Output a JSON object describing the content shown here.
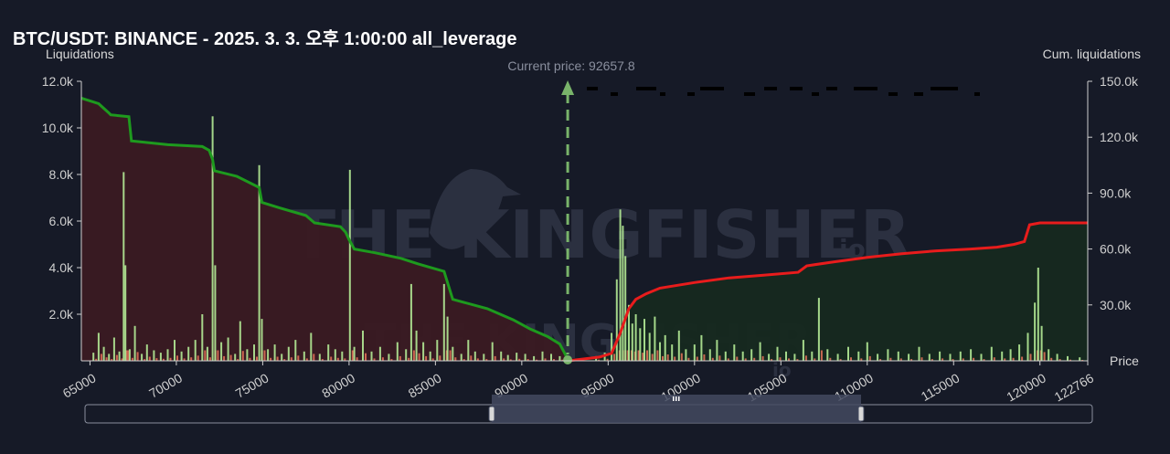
{
  "title": "BTC/USDT: BINANCE - 2025. 3. 3. 오후 1:00:00 all_leverage",
  "watermark": {
    "brand": "THE KINGFISHER",
    "suffix": "io"
  },
  "colors": {
    "background": "#161a27",
    "long_cum_line": "#1e9a1e",
    "short_cum_line": "#e81c1c",
    "long_area": "#3a1a22",
    "short_area": "#16291f",
    "bar_green": "#b4eb96",
    "bar_red": "#e8735a",
    "current_price_marker": "#79b46a"
  },
  "chart_data": {
    "type": "bar",
    "title": "BTC/USDT: BINANCE - 2025. 3. 3. 오후 1:00:00 all_leverage",
    "xlabel": "Price",
    "ylabel": "Liquidations",
    "y2label": "Cum. liquidations",
    "xlim": [
      64500,
      122766
    ],
    "ylim": [
      0,
      12000
    ],
    "y2lim": [
      0,
      150000
    ],
    "x_ticks": [
      65000,
      70000,
      75000,
      80000,
      85000,
      90000,
      95000,
      100000,
      105000,
      110000,
      115000,
      120000,
      122766
    ],
    "y_ticks": [
      2000,
      4000,
      6000,
      8000,
      10000,
      12000
    ],
    "y_tick_labels": [
      "2.0k",
      "4.0k",
      "6.0k",
      "8.0k",
      "10.0k",
      "12.0k"
    ],
    "y2_ticks": [
      30000,
      60000,
      90000,
      120000,
      150000
    ],
    "y2_tick_labels": [
      "30.0k",
      "60.0k",
      "90.0k",
      "120.0k",
      "150.0k"
    ],
    "current_price": 92657.8,
    "current_price_label": "Current price: 92657.8",
    "grid": false,
    "legend": "none",
    "liquidation_bars": [
      {
        "x": 65200,
        "v": 350,
        "side": "long"
      },
      {
        "x": 65500,
        "v": 1200,
        "side": "long"
      },
      {
        "x": 65800,
        "v": 600,
        "side": "long"
      },
      {
        "x": 66100,
        "v": 300,
        "side": "long"
      },
      {
        "x": 66400,
        "v": 1000,
        "side": "long"
      },
      {
        "x": 66700,
        "v": 400,
        "side": "long"
      },
      {
        "x": 66950,
        "v": 8100,
        "side": "long"
      },
      {
        "x": 67050,
        "v": 4100,
        "side": "long"
      },
      {
        "x": 67300,
        "v": 500,
        "side": "long"
      },
      {
        "x": 67600,
        "v": 1500,
        "side": "long"
      },
      {
        "x": 68000,
        "v": 300,
        "side": "long"
      },
      {
        "x": 68300,
        "v": 700,
        "side": "long"
      },
      {
        "x": 68700,
        "v": 450,
        "side": "long"
      },
      {
        "x": 69100,
        "v": 350,
        "side": "long"
      },
      {
        "x": 69500,
        "v": 500,
        "side": "long"
      },
      {
        "x": 69900,
        "v": 900,
        "side": "long"
      },
      {
        "x": 70300,
        "v": 400,
        "side": "long"
      },
      {
        "x": 70700,
        "v": 600,
        "side": "long"
      },
      {
        "x": 71100,
        "v": 900,
        "side": "long"
      },
      {
        "x": 71500,
        "v": 2000,
        "side": "long"
      },
      {
        "x": 71800,
        "v": 600,
        "side": "long"
      },
      {
        "x": 72100,
        "v": 10500,
        "side": "long"
      },
      {
        "x": 72250,
        "v": 4100,
        "side": "long"
      },
      {
        "x": 72600,
        "v": 800,
        "side": "long"
      },
      {
        "x": 73000,
        "v": 1000,
        "side": "long"
      },
      {
        "x": 73400,
        "v": 300,
        "side": "long"
      },
      {
        "x": 73700,
        "v": 1700,
        "side": "long"
      },
      {
        "x": 74100,
        "v": 500,
        "side": "long"
      },
      {
        "x": 74500,
        "v": 700,
        "side": "long"
      },
      {
        "x": 74800,
        "v": 8400,
        "side": "long"
      },
      {
        "x": 74950,
        "v": 1800,
        "side": "long"
      },
      {
        "x": 75300,
        "v": 500,
        "side": "long"
      },
      {
        "x": 75700,
        "v": 700,
        "side": "long"
      },
      {
        "x": 76100,
        "v": 300,
        "side": "long"
      },
      {
        "x": 76500,
        "v": 600,
        "side": "long"
      },
      {
        "x": 76900,
        "v": 900,
        "side": "long"
      },
      {
        "x": 77400,
        "v": 400,
        "side": "long"
      },
      {
        "x": 77800,
        "v": 1200,
        "side": "long"
      },
      {
        "x": 78300,
        "v": 300,
        "side": "long"
      },
      {
        "x": 78800,
        "v": 700,
        "side": "long"
      },
      {
        "x": 79200,
        "v": 500,
        "side": "long"
      },
      {
        "x": 79600,
        "v": 400,
        "side": "long"
      },
      {
        "x": 80050,
        "v": 8200,
        "side": "long"
      },
      {
        "x": 80300,
        "v": 600,
        "side": "long"
      },
      {
        "x": 80800,
        "v": 1300,
        "side": "long"
      },
      {
        "x": 81300,
        "v": 400,
        "side": "long"
      },
      {
        "x": 81800,
        "v": 600,
        "side": "long"
      },
      {
        "x": 82300,
        "v": 300,
        "side": "long"
      },
      {
        "x": 82800,
        "v": 800,
        "side": "long"
      },
      {
        "x": 83300,
        "v": 500,
        "side": "long"
      },
      {
        "x": 83600,
        "v": 3300,
        "side": "long"
      },
      {
        "x": 83900,
        "v": 1300,
        "side": "long"
      },
      {
        "x": 84300,
        "v": 800,
        "side": "long"
      },
      {
        "x": 84700,
        "v": 400,
        "side": "long"
      },
      {
        "x": 85100,
        "v": 900,
        "side": "long"
      },
      {
        "x": 85500,
        "v": 3300,
        "side": "long"
      },
      {
        "x": 85700,
        "v": 1900,
        "side": "long"
      },
      {
        "x": 86000,
        "v": 600,
        "side": "long"
      },
      {
        "x": 86500,
        "v": 300,
        "side": "long"
      },
      {
        "x": 86900,
        "v": 900,
        "side": "long"
      },
      {
        "x": 87300,
        "v": 400,
        "side": "long"
      },
      {
        "x": 87800,
        "v": 300,
        "side": "long"
      },
      {
        "x": 88300,
        "v": 800,
        "side": "long"
      },
      {
        "x": 88800,
        "v": 400,
        "side": "long"
      },
      {
        "x": 89200,
        "v": 250,
        "side": "long"
      },
      {
        "x": 89700,
        "v": 350,
        "side": "long"
      },
      {
        "x": 90200,
        "v": 300,
        "side": "long"
      },
      {
        "x": 90700,
        "v": 200,
        "side": "long"
      },
      {
        "x": 91200,
        "v": 400,
        "side": "long"
      },
      {
        "x": 91700,
        "v": 300,
        "side": "long"
      },
      {
        "x": 92200,
        "v": 200,
        "side": "long"
      },
      {
        "x": 94300,
        "v": 200,
        "side": "short"
      },
      {
        "x": 94800,
        "v": 350,
        "side": "short"
      },
      {
        "x": 95200,
        "v": 1200,
        "side": "short"
      },
      {
        "x": 95500,
        "v": 3500,
        "side": "short"
      },
      {
        "x": 95700,
        "v": 6500,
        "side": "short"
      },
      {
        "x": 95850,
        "v": 5800,
        "side": "short"
      },
      {
        "x": 96000,
        "v": 4500,
        "side": "short"
      },
      {
        "x": 96200,
        "v": 2400,
        "side": "short"
      },
      {
        "x": 96400,
        "v": 1600,
        "side": "short"
      },
      {
        "x": 96600,
        "v": 2000,
        "side": "short"
      },
      {
        "x": 96850,
        "v": 1400,
        "side": "short"
      },
      {
        "x": 97100,
        "v": 1800,
        "side": "short"
      },
      {
        "x": 97400,
        "v": 1200,
        "side": "short"
      },
      {
        "x": 97700,
        "v": 1900,
        "side": "short"
      },
      {
        "x": 98000,
        "v": 800,
        "side": "short"
      },
      {
        "x": 98300,
        "v": 1100,
        "side": "short"
      },
      {
        "x": 98700,
        "v": 700,
        "side": "short"
      },
      {
        "x": 99100,
        "v": 1300,
        "side": "short"
      },
      {
        "x": 99500,
        "v": 500,
        "side": "short"
      },
      {
        "x": 100000,
        "v": 700,
        "side": "short"
      },
      {
        "x": 100400,
        "v": 1100,
        "side": "short"
      },
      {
        "x": 100900,
        "v": 500,
        "side": "short"
      },
      {
        "x": 101300,
        "v": 900,
        "side": "short"
      },
      {
        "x": 101800,
        "v": 400,
        "side": "short"
      },
      {
        "x": 102300,
        "v": 700,
        "side": "short"
      },
      {
        "x": 102800,
        "v": 400,
        "side": "short"
      },
      {
        "x": 103300,
        "v": 500,
        "side": "short"
      },
      {
        "x": 103800,
        "v": 800,
        "side": "short"
      },
      {
        "x": 104300,
        "v": 300,
        "side": "short"
      },
      {
        "x": 104800,
        "v": 600,
        "side": "short"
      },
      {
        "x": 105300,
        "v": 400,
        "side": "short"
      },
      {
        "x": 105800,
        "v": 300,
        "side": "short"
      },
      {
        "x": 106300,
        "v": 900,
        "side": "short"
      },
      {
        "x": 106800,
        "v": 400,
        "side": "short"
      },
      {
        "x": 107200,
        "v": 2700,
        "side": "short"
      },
      {
        "x": 107700,
        "v": 500,
        "side": "short"
      },
      {
        "x": 108300,
        "v": 300,
        "side": "short"
      },
      {
        "x": 108900,
        "v": 600,
        "side": "short"
      },
      {
        "x": 109500,
        "v": 400,
        "side": "short"
      },
      {
        "x": 110000,
        "v": 800,
        "side": "short"
      },
      {
        "x": 110600,
        "v": 300,
        "side": "short"
      },
      {
        "x": 111200,
        "v": 500,
        "side": "short"
      },
      {
        "x": 111800,
        "v": 400,
        "side": "short"
      },
      {
        "x": 112400,
        "v": 300,
        "side": "short"
      },
      {
        "x": 113000,
        "v": 600,
        "side": "short"
      },
      {
        "x": 113600,
        "v": 300,
        "side": "short"
      },
      {
        "x": 114200,
        "v": 400,
        "side": "short"
      },
      {
        "x": 114800,
        "v": 300,
        "side": "short"
      },
      {
        "x": 115400,
        "v": 400,
        "side": "short"
      },
      {
        "x": 116000,
        "v": 500,
        "side": "short"
      },
      {
        "x": 116600,
        "v": 300,
        "side": "short"
      },
      {
        "x": 117200,
        "v": 600,
        "side": "short"
      },
      {
        "x": 117800,
        "v": 400,
        "side": "short"
      },
      {
        "x": 118300,
        "v": 500,
        "side": "short"
      },
      {
        "x": 118800,
        "v": 700,
        "side": "short"
      },
      {
        "x": 119300,
        "v": 1200,
        "side": "short"
      },
      {
        "x": 119700,
        "v": 2500,
        "side": "short"
      },
      {
        "x": 119900,
        "v": 4000,
        "side": "short"
      },
      {
        "x": 120100,
        "v": 1500,
        "side": "short"
      },
      {
        "x": 120500,
        "v": 500,
        "side": "short"
      },
      {
        "x": 121000,
        "v": 300,
        "side": "short"
      },
      {
        "x": 121600,
        "v": 200,
        "side": "short"
      },
      {
        "x": 122300,
        "v": 150,
        "side": "short"
      }
    ],
    "series": [
      {
        "name": "long_cumulative",
        "x": [
          64500,
          65500,
          66100,
          66200,
          67250,
          67400,
          69500,
          71500,
          71900,
          72100,
          72200,
          73500,
          74800,
          74950,
          76000,
          77500,
          78000,
          79500,
          79800,
          80000,
          80300,
          81500,
          83000,
          84000,
          85500,
          86000,
          88000,
          89500,
          90500,
          91500,
          92200,
          92657.8
        ],
        "y": [
          141000,
          138000,
          133000,
          132000,
          131000,
          118000,
          116000,
          115000,
          113000,
          108000,
          102000,
          99000,
          93000,
          85000,
          82000,
          78000,
          74000,
          72000,
          69000,
          65000,
          60000,
          58000,
          55000,
          52000,
          48000,
          33000,
          28000,
          22000,
          17000,
          13000,
          9000,
          1000
        ]
      },
      {
        "name": "short_cumulative",
        "x": [
          92657.8,
          94500,
          95200,
          95700,
          96200,
          96600,
          97200,
          98000,
          100000,
          102000,
          104000,
          106000,
          106500,
          108000,
          110000,
          112000,
          114000,
          116000,
          117500,
          118500,
          119100,
          119400,
          120000,
          121000,
          122766
        ],
        "y": [
          0,
          2000,
          4000,
          15000,
          28000,
          33000,
          36000,
          39000,
          42000,
          44500,
          46000,
          47500,
          51000,
          53000,
          55500,
          57500,
          59000,
          60000,
          61000,
          62500,
          64000,
          73000,
          74000,
          74000,
          74000
        ]
      }
    ]
  }
}
